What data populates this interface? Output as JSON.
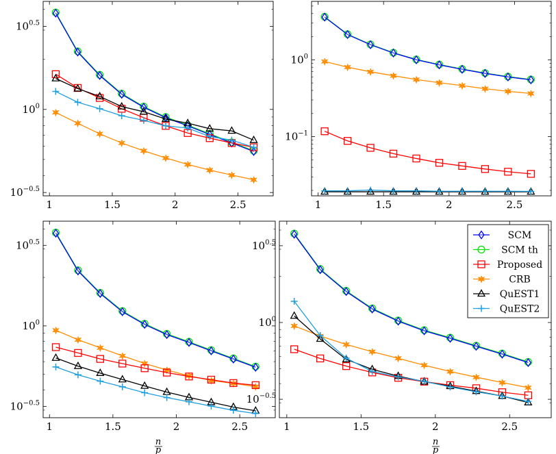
{
  "x_axis_label_num": "n",
  "x_axis_label_den": "p",
  "legend": {
    "entries": [
      {
        "label": "SCM",
        "color": "#0000ff",
        "marker": "diamond"
      },
      {
        "label": "SCM th",
        "color": "#00e600",
        "marker": "circle"
      },
      {
        "label": "Proposed",
        "color": "#ff0000",
        "marker": "square"
      },
      {
        "label": "CRB",
        "color": "#ff8c00",
        "marker": "star"
      },
      {
        "label": "QuEST1",
        "color": "#000000",
        "marker": "triangle"
      },
      {
        "label": "QuEST2",
        "color": "#1e9fe0",
        "marker": "plus"
      }
    ]
  },
  "chart_data": [
    {
      "type": "line",
      "panel": "top-left",
      "yscale": "log",
      "x": [
        1.05,
        1.225,
        1.4,
        1.575,
        1.75,
        1.925,
        2.1,
        2.275,
        2.45,
        2.625
      ],
      "xlim": [
        0.95,
        2.78
      ],
      "ylim_log10": [
        -0.52,
        0.65
      ],
      "xticks": [
        {
          "v": 1,
          "label": "1"
        },
        {
          "v": 1.5,
          "label": "1.5"
        },
        {
          "v": 2,
          "label": "2"
        },
        {
          "v": 2.5,
          "label": "2.5"
        }
      ],
      "yticks": [
        {
          "v": 0.5,
          "base": "10",
          "exp": "0.5"
        },
        {
          "v": 0,
          "base": "10",
          "exp": "0"
        },
        {
          "v": -0.5,
          "base": "10",
          "exp": "−0.5"
        }
      ],
      "series": [
        {
          "name": "SCM",
          "log10_values": [
            0.579,
            0.345,
            0.204,
            0.091,
            0.013,
            -0.05,
            -0.099,
            -0.151,
            -0.202,
            -0.253
          ]
        },
        {
          "name": "SCM th",
          "log10_values": [
            0.583,
            0.349,
            0.208,
            0.095,
            0.017,
            -0.046,
            -0.095,
            -0.147,
            -0.198,
            -0.249
          ]
        },
        {
          "name": "Proposed",
          "log10_values": [
            0.212,
            0.129,
            0.069,
            0.004,
            -0.05,
            -0.099,
            -0.142,
            -0.173,
            -0.202,
            -0.228
          ]
        },
        {
          "name": "CRB",
          "log10_values": [
            -0.018,
            -0.083,
            -0.147,
            -0.202,
            -0.249,
            -0.292,
            -0.331,
            -0.365,
            -0.395,
            -0.423
          ]
        },
        {
          "name": "QuEST1",
          "log10_values": [
            0.186,
            0.125,
            0.078,
            0.017,
            -0.014,
            -0.058,
            -0.083,
            -0.116,
            -0.129,
            -0.185
          ]
        },
        {
          "name": "QuEST2",
          "log10_values": [
            0.108,
            0.043,
            0.004,
            -0.038,
            -0.066,
            -0.099,
            -0.112,
            -0.163,
            -0.185,
            -0.228
          ]
        }
      ]
    },
    {
      "type": "line",
      "panel": "top-right",
      "yscale": "log",
      "x": [
        1.05,
        1.225,
        1.4,
        1.575,
        1.75,
        1.925,
        2.1,
        2.275,
        2.45,
        2.625
      ],
      "xlim": [
        0.95,
        2.78
      ],
      "ylim_log10": [
        -1.77,
        0.76
      ],
      "xticks": [
        {
          "v": 1,
          "label": "1"
        },
        {
          "v": 1.5,
          "label": "1.5"
        },
        {
          "v": 2,
          "label": "2"
        },
        {
          "v": 2.5,
          "label": "2.5"
        }
      ],
      "yticks": [
        {
          "v": 0,
          "base": "10",
          "exp": "0"
        },
        {
          "v": -1,
          "base": "10",
          "exp": "−1"
        }
      ],
      "series": [
        {
          "name": "SCM",
          "log10_values": [
            0.555,
            0.328,
            0.196,
            0.088,
            0.0,
            -0.066,
            -0.124,
            -0.177,
            -0.223,
            -0.261
          ]
        },
        {
          "name": "SCM th",
          "log10_values": [
            0.559,
            0.332,
            0.2,
            0.092,
            0.004,
            -0.062,
            -0.12,
            -0.173,
            -0.219,
            -0.257
          ]
        },
        {
          "name": "Proposed",
          "log10_values": [
            -0.93,
            -1.055,
            -1.145,
            -1.221,
            -1.284,
            -1.34,
            -1.381,
            -1.421,
            -1.456,
            -1.484
          ]
        },
        {
          "name": "CRB",
          "log10_values": [
            -0.022,
            -0.096,
            -0.156,
            -0.207,
            -0.257,
            -0.298,
            -0.336,
            -0.376,
            -0.41,
            -0.438
          ]
        },
        {
          "name": "QuEST1",
          "log10_values": [
            -1.717,
            -1.717,
            -1.717,
            -1.717,
            -1.717,
            -1.717,
            -1.717,
            -1.717,
            -1.717,
            -1.717
          ]
        },
        {
          "name": "QuEST2",
          "log10_values": [
            -1.705,
            -1.705,
            -1.695,
            -1.705,
            -1.705,
            -1.71,
            -1.71,
            -1.71,
            -1.71,
            -1.712
          ]
        }
      ]
    },
    {
      "type": "line",
      "panel": "bottom-left",
      "yscale": "log",
      "x": [
        1.05,
        1.225,
        1.4,
        1.575,
        1.75,
        1.925,
        2.1,
        2.275,
        2.45,
        2.625
      ],
      "xlim": [
        0.95,
        2.78
      ],
      "ylim_log10": [
        -0.57,
        0.65
      ],
      "xticks": [
        {
          "v": 1,
          "label": "1"
        },
        {
          "v": 1.5,
          "label": "1.5"
        },
        {
          "v": 2,
          "label": "2"
        },
        {
          "v": 2.5,
          "label": "2.5"
        }
      ],
      "yticks": [
        {
          "v": 0.5,
          "base": "10",
          "exp": "0.5"
        },
        {
          "v": 0,
          "base": "10",
          "exp": "0"
        },
        {
          "v": -0.5,
          "base": "10",
          "exp": "−0.5"
        }
      ],
      "series": [
        {
          "name": "SCM",
          "log10_values": [
            0.575,
            0.341,
            0.201,
            0.088,
            0.009,
            -0.054,
            -0.103,
            -0.155,
            -0.206,
            -0.257
          ]
        },
        {
          "name": "SCM th",
          "log10_values": [
            0.579,
            0.345,
            0.205,
            0.092,
            0.013,
            -0.05,
            -0.099,
            -0.151,
            -0.202,
            -0.253
          ]
        },
        {
          "name": "Proposed",
          "log10_values": [
            -0.132,
            -0.168,
            -0.205,
            -0.234,
            -0.263,
            -0.29,
            -0.314,
            -0.334,
            -0.355,
            -0.368
          ]
        },
        {
          "name": "CRB",
          "log10_values": [
            -0.027,
            -0.086,
            -0.136,
            -0.186,
            -0.233,
            -0.274,
            -0.31,
            -0.339,
            -0.357,
            -0.377
          ]
        },
        {
          "name": "QuEST1",
          "log10_values": [
            -0.199,
            -0.25,
            -0.293,
            -0.333,
            -0.373,
            -0.411,
            -0.444,
            -0.474,
            -0.504,
            -0.527
          ]
        },
        {
          "name": "QuEST2",
          "log10_values": [
            -0.255,
            -0.304,
            -0.343,
            -0.378,
            -0.415,
            -0.445,
            -0.471,
            -0.498,
            -0.524,
            -0.544
          ]
        }
      ]
    },
    {
      "type": "line",
      "panel": "bottom-right",
      "yscale": "log",
      "x": [
        1.05,
        1.225,
        1.4,
        1.575,
        1.75,
        1.925,
        2.1,
        2.275,
        2.45,
        2.625
      ],
      "xlim": [
        0.95,
        2.78
      ],
      "ylim_log10": [
        -0.62,
        0.66
      ],
      "xticks": [
        {
          "v": 1,
          "label": "1"
        },
        {
          "v": 1.5,
          "label": "1.5"
        },
        {
          "v": 2,
          "label": "2"
        },
        {
          "v": 2.5,
          "label": "2.5"
        }
      ],
      "yticks": [
        {
          "v": 0.5,
          "base": "10",
          "exp": "0.5"
        },
        {
          "v": 0,
          "base": "10",
          "exp": "0"
        },
        {
          "v": -0.5,
          "base": "10",
          "exp": "−0.5"
        }
      ],
      "series": [
        {
          "name": "SCM",
          "log10_values": [
            0.575,
            0.344,
            0.202,
            0.088,
            0.009,
            -0.054,
            -0.103,
            -0.155,
            -0.206,
            -0.261
          ]
        },
        {
          "name": "SCM th",
          "log10_values": [
            0.579,
            0.348,
            0.206,
            0.092,
            0.013,
            -0.05,
            -0.099,
            -0.151,
            -0.202,
            -0.257
          ]
        },
        {
          "name": "Proposed",
          "log10_values": [
            -0.174,
            -0.234,
            -0.284,
            -0.325,
            -0.36,
            -0.385,
            -0.408,
            -0.428,
            -0.454,
            -0.474
          ]
        },
        {
          "name": "CRB",
          "log10_values": [
            -0.022,
            -0.088,
            -0.143,
            -0.19,
            -0.233,
            -0.278,
            -0.319,
            -0.356,
            -0.391,
            -0.424
          ]
        },
        {
          "name": "QuEST1",
          "log10_values": [
            0.043,
            -0.107,
            -0.24,
            -0.305,
            -0.349,
            -0.385,
            -0.415,
            -0.447,
            -0.479,
            -0.521
          ]
        },
        {
          "name": "QuEST2",
          "log10_values": [
            0.138,
            -0.085,
            -0.232,
            -0.319,
            -0.354,
            -0.383,
            -0.42,
            -0.451,
            -0.479,
            -0.514
          ]
        }
      ]
    }
  ]
}
